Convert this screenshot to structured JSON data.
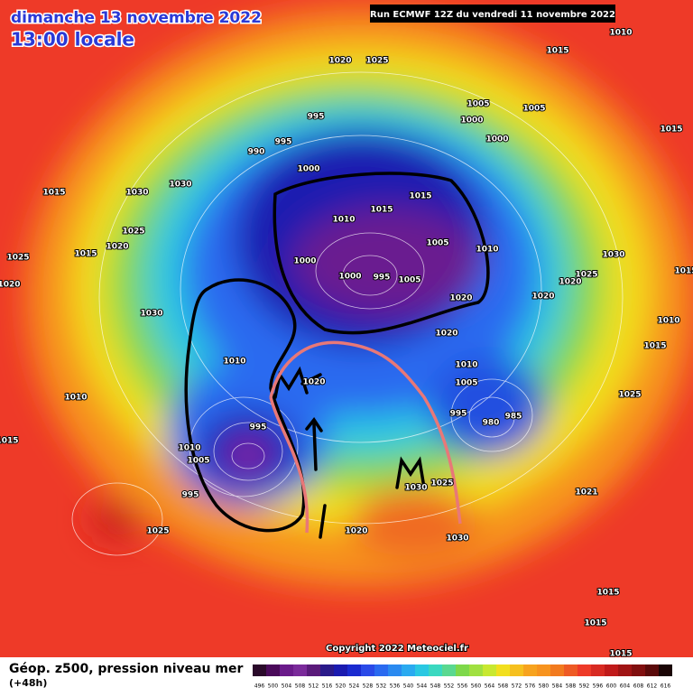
{
  "header": {
    "date": "dimanche 13 novembre 2022",
    "time": "13:00 locale",
    "run": "Run ECMWF 12Z du vendredi 11 novembre 2022"
  },
  "map": {
    "pressure_labels": [
      1010,
      1015,
      1020,
      1025,
      1005,
      1000,
      1005,
      1000,
      1015,
      995,
      995,
      990,
      1000,
      1015,
      1030,
      1030,
      1025,
      1015,
      1020,
      1025,
      1020,
      1015,
      1015,
      1010,
      1005,
      1010,
      1000,
      1000,
      995,
      1005,
      1020,
      1030,
      1025,
      1020,
      1020,
      1015,
      1030,
      1020,
      1010,
      1015,
      1010,
      1010,
      1005,
      1020,
      995,
      980,
      985,
      1010,
      1025,
      1015,
      1010,
      1005,
      995,
      995,
      1025,
      1030,
      1021,
      1025,
      1020,
      1030,
      1015,
      1015,
      1015
    ],
    "copyright": "Copyright 2022 Meteociel.fr"
  },
  "footer": {
    "title": "Géop. z500, pression niveau mer",
    "subtitle": "(+48h)",
    "scale": [
      496,
      500,
      504,
      508,
      512,
      516,
      520,
      524,
      528,
      532,
      536,
      540,
      544,
      548,
      552,
      556,
      560,
      564,
      568,
      572,
      576,
      580,
      584,
      588,
      592,
      596,
      600,
      604,
      608,
      612,
      616
    ]
  }
}
